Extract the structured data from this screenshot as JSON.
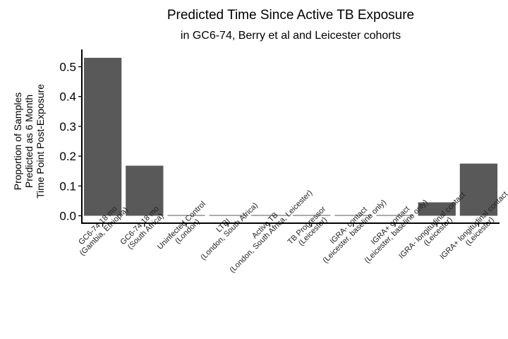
{
  "chart_data": {
    "type": "bar",
    "title": "Predicted Time Since Active TB Exposure",
    "subtitle": "in GC6-74, Berry et al and Leicester cohorts",
    "ylabel_lines": [
      "Proportion of Samples",
      "Predicted as 6 Month",
      "Time Point Post-Exposure"
    ],
    "xlabel": "",
    "ylim": [
      0,
      0.56
    ],
    "yticks": [
      0.0,
      0.1,
      0.2,
      0.3,
      0.4,
      0.5
    ],
    "ytick_labels": [
      "0.0",
      "0.1",
      "0.2",
      "0.3",
      "0.4",
      "0.5"
    ],
    "grid": false,
    "categories": [
      [
        "GC6-74 18 mo",
        "(Gambia, Ethiopia)"
      ],
      [
        "GC6-74 18 mo",
        "(South Africa)"
      ],
      [
        "Uninfected Control",
        "(London)"
      ],
      [
        "LTBI",
        "(London, South Africa)"
      ],
      [
        "Active TB",
        "(London, South Africa, Leicester)"
      ],
      [
        "TB Progressor",
        "(Leicester)"
      ],
      [
        "IGRA- contact",
        "(Leicester, baseline only)"
      ],
      [
        "IGRA+ contact",
        "(Leicester, baseline only)"
      ],
      [
        "IGRA- longitudinal contact",
        "(Leicester)"
      ],
      [
        "IGRA+ longitudinal contact",
        "(Leicester)"
      ]
    ],
    "values": [
      0.53,
      0.168,
      0.0,
      0.0,
      0.0,
      0.0,
      0.0,
      0.0,
      0.045,
      0.175
    ],
    "bar_color": "#595959"
  }
}
